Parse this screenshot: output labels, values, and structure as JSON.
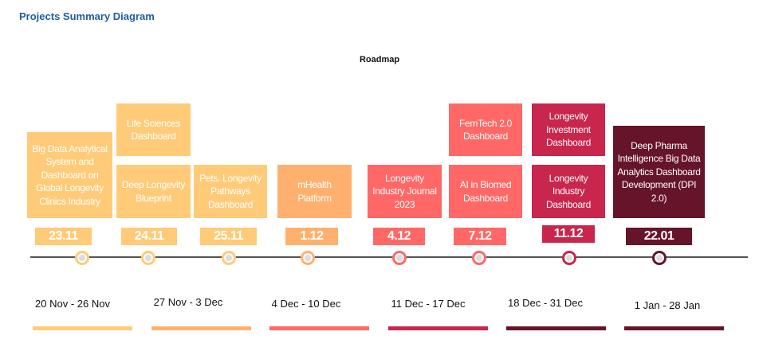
{
  "title": "Projects Summary Diagram",
  "subtitle": "Roadmap",
  "colors": {
    "yellow": "#FFCB78",
    "orange": "#FFB06E",
    "coral": "#FF6866",
    "crimson": "#C8264C",
    "maroon": "#66142A"
  },
  "projects": [
    {
      "label": "Big Data Analytical System and Dashboard on Global Longevity Clinics Industry"
    },
    {
      "label": "Life Sciences Dashboard"
    },
    {
      "label": "Deep Longevity Blueprint"
    },
    {
      "label": "Pets. Longevity Pathways Dashboard"
    },
    {
      "label": "mHealth Platform"
    },
    {
      "label": "Longevity Industry Journal 2023"
    },
    {
      "label": "FemTech 2.0 Dashboard"
    },
    {
      "label": "AI in Biomed Dashboard"
    },
    {
      "label": "Longevity Investment Dashboard"
    },
    {
      "label": "Longevity Industry Dashboard"
    },
    {
      "label": "Deep Pharma Intelligence Big Data Analytics Dashboard Development (DPI 2.0)"
    }
  ],
  "dates": [
    "23.11",
    "24.11",
    "25.11",
    "1.12",
    "4.12",
    "7.12",
    "11.12",
    "22.01"
  ],
  "ranges": [
    "20 Nov - 26 Nov",
    "27 Nov - 3 Dec",
    "4 Dec - 10 Dec",
    "11 Dec - 17 Dec",
    "18 Dec - 31 Dec",
    "1 Jan - 28 Jan"
  ]
}
